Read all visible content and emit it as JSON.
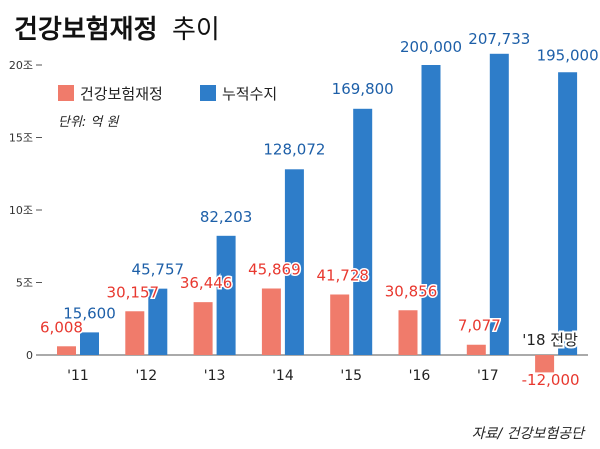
{
  "title": {
    "main": "건강보험재정",
    "sub": "추이"
  },
  "legend": {
    "items": [
      {
        "label": "건강보험재정",
        "color": "#f07b6b"
      },
      {
        "label": "누적수지",
        "color": "#2e7dc9"
      }
    ],
    "unit": "단위: 억 원"
  },
  "source": "자료/ 건강보험공단",
  "chart_data": {
    "type": "bar",
    "categories": [
      "'11",
      "'12",
      "'13",
      "'14",
      "'15",
      "'16",
      "'17",
      "'18 전망"
    ],
    "x_tick_labels": [
      "'11",
      "'12",
      "'13",
      "'14",
      "'15",
      "'16",
      "'17",
      ""
    ],
    "y_ticks": [
      {
        "value": 0,
        "label": "0"
      },
      {
        "value": 50000,
        "label": "5조"
      },
      {
        "value": 100000,
        "label": "10조"
      },
      {
        "value": 150000,
        "label": "15조"
      },
      {
        "value": 200000,
        "label": "20조"
      }
    ],
    "ylim": [
      -20000,
      210000
    ],
    "series": [
      {
        "name": "건강보험재정",
        "color": "#f07b6b",
        "label_color": "#e8382f",
        "values": [
          6008,
          30157,
          36446,
          45869,
          41728,
          30856,
          7077,
          -12000
        ],
        "labels": [
          "6,008",
          "30,157",
          "36,446",
          "45,869",
          "41,728",
          "30,856",
          "7,077",
          "-12,000"
        ]
      },
      {
        "name": "누적수지",
        "color": "#2e7dc9",
        "label_color": "#1d5fa8",
        "values": [
          15600,
          45757,
          82203,
          128072,
          169800,
          200000,
          207733,
          195000
        ],
        "labels": [
          "15,600",
          "45,757",
          "82,203",
          "128,072",
          "169,800",
          "200,000",
          "207,733",
          "195,000"
        ]
      }
    ],
    "annotations": [
      {
        "category_index": 7,
        "text": "'18 전망"
      }
    ],
    "grid": false,
    "legend_position": "top-left"
  }
}
